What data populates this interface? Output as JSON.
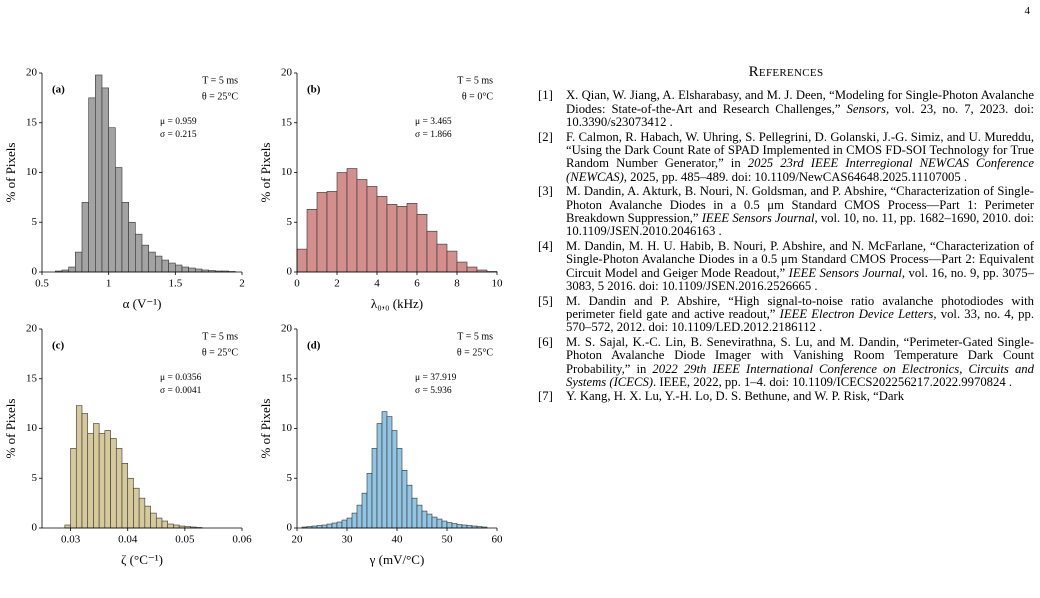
{
  "page_number": "4",
  "chart_data": [
    {
      "type": "histogram",
      "xlabel": "α (V⁻¹)",
      "ylabel": "% of Pixels",
      "color": "#a3a3a3",
      "annotations": [
        "(a)",
        "T = 5 ms",
        "θ = 25°C",
        "μ = 0.959",
        "σ = 0.215"
      ],
      "bins": [
        0.6,
        0.65,
        0.7,
        0.75,
        0.8,
        0.85,
        0.9,
        0.95,
        1.0,
        1.05,
        1.1,
        1.15,
        1.2,
        1.25,
        1.3,
        1.35,
        1.4,
        1.45,
        1.5,
        1.55,
        1.6,
        1.65,
        1.7,
        1.75,
        1.8,
        1.85,
        1.9,
        1.95
      ],
      "values": [
        0.1,
        0.2,
        0.5,
        2.0,
        7.0,
        17.5,
        19.8,
        18.5,
        14.5,
        10.5,
        7.0,
        5.0,
        3.8,
        2.7,
        2.0,
        1.6,
        1.2,
        0.9,
        0.7,
        0.5,
        0.4,
        0.3,
        0.2,
        0.15,
        0.1,
        0.1,
        0.05
      ],
      "xlim": [
        0.5,
        2
      ],
      "xticks": [
        0.5,
        1,
        1.5,
        2
      ],
      "ylim": [
        0,
        20
      ],
      "yticks": [
        0,
        5,
        10,
        15,
        20
      ]
    },
    {
      "type": "histogram",
      "xlabel": "λ₀,₀ (kHz)",
      "ylabel": "% of Pixels",
      "color": "#d38e8e",
      "annotations": [
        "(b)",
        "T = 5 ms",
        "θ = 0°C",
        "μ = 3.465",
        "σ = 1.866"
      ],
      "bins": [
        0,
        0.5,
        1,
        1.5,
        2,
        2.5,
        3,
        3.5,
        4,
        4.5,
        5,
        5.5,
        6,
        6.5,
        7,
        7.5,
        8,
        8.5,
        9,
        9.5,
        10
      ],
      "values": [
        2.3,
        6.3,
        8.0,
        8.1,
        10.0,
        10.4,
        9.3,
        8.6,
        7.6,
        6.8,
        6.6,
        6.9,
        5.8,
        4.1,
        2.8,
        2.1,
        1.0,
        0.5,
        0.2,
        0.05
      ],
      "xlim": [
        0,
        10
      ],
      "xticks": [
        0,
        2,
        4,
        6,
        8,
        10
      ],
      "ylim": [
        0,
        20
      ],
      "yticks": [
        0,
        5,
        10,
        15,
        20
      ]
    },
    {
      "type": "histogram",
      "xlabel": "ζ (°C⁻¹)",
      "ylabel": "% of Pixels",
      "color": "#d6ca9c",
      "annotations": [
        "(c)",
        "T = 5 ms",
        "θ = 25°C",
        "μ = 0.0356",
        "σ = 0.0041"
      ],
      "bins": [
        0.029,
        0.03,
        0.031,
        0.032,
        0.033,
        0.034,
        0.035,
        0.036,
        0.037,
        0.038,
        0.039,
        0.04,
        0.041,
        0.042,
        0.043,
        0.044,
        0.045,
        0.046,
        0.047,
        0.048,
        0.049,
        0.05,
        0.051,
        0.052,
        0.053
      ],
      "values": [
        0.3,
        8.0,
        12.3,
        11.5,
        9.5,
        10.5,
        9.5,
        9.8,
        9.0,
        8.0,
        6.5,
        5.0,
        4.0,
        3.0,
        2.2,
        1.5,
        1.0,
        0.7,
        0.4,
        0.3,
        0.2,
        0.15,
        0.1,
        0.05
      ],
      "xlim": [
        0.025,
        0.06
      ],
      "xticks": [
        0.03,
        0.04,
        0.05,
        0.06
      ],
      "ylim": [
        0,
        20
      ],
      "yticks": [
        0,
        5,
        10,
        15,
        20
      ]
    },
    {
      "type": "histogram",
      "xlabel": "γ (mV/°C)",
      "ylabel": "% of Pixels",
      "color": "#92c5e4",
      "annotations": [
        "(d)",
        "T = 5 ms",
        "θ = 25°C",
        "μ = 37.919",
        "σ = 5.936"
      ],
      "bins": [
        21,
        22,
        23,
        24,
        25,
        26,
        27,
        28,
        29,
        30,
        31,
        32,
        33,
        34,
        35,
        36,
        37,
        38,
        39,
        40,
        41,
        42,
        43,
        44,
        45,
        46,
        47,
        48,
        49,
        50,
        51,
        52,
        53,
        54,
        55,
        56,
        57,
        58
      ],
      "values": [
        0.1,
        0.15,
        0.2,
        0.25,
        0.3,
        0.4,
        0.5,
        0.6,
        0.8,
        1.0,
        1.5,
        2.3,
        3.5,
        5.5,
        8.0,
        10.5,
        11.7,
        11.2,
        9.8,
        8.0,
        5.8,
        4.3,
        3.0,
        2.3,
        1.7,
        1.4,
        1.1,
        0.9,
        0.7,
        0.55,
        0.45,
        0.35,
        0.3,
        0.25,
        0.2,
        0.15,
        0.1
      ],
      "xlim": [
        20,
        60
      ],
      "xticks": [
        20,
        30,
        40,
        50,
        60
      ],
      "ylim": [
        0,
        20
      ],
      "yticks": [
        0,
        5,
        10,
        15,
        20
      ]
    }
  ],
  "references": {
    "title": "References",
    "items": [
      {
        "label": "[1]",
        "parts": [
          "X. Qian, W. Jiang, A. Elsharabasy, and M. J. Deen, “Modeling for Single-Photon Avalanche Diodes: State-of-the-Art and Research Challenges,” ",
          "Sensors",
          ", vol. 23, no. 7, 2023. doi: 10.3390/s23073412 ."
        ]
      },
      {
        "label": "[2]",
        "parts": [
          "F. Calmon, R. Habach, W. Uhring, S. Pellegrini, D. Golanski, J.-G. Simiz, and U. Mureddu, “Using the Dark Count Rate of SPAD Implemented in CMOS FD-SOI Technology for True Random Number Generator,” in ",
          "2025 23rd IEEE Interregional NEWCAS Conference (NEWCAS)",
          ", 2025, pp. 485–489. doi: 10.1109/NewCAS64648.2025.11107005 ."
        ]
      },
      {
        "label": "[3]",
        "parts": [
          "M. Dandin, A. Akturk, B. Nouri, N. Goldsman, and P. Abshire, “Characterization of Single-Photon Avalanche Diodes in a 0.5 μm Standard CMOS Process—Part 1: Perimeter Breakdown Suppression,” ",
          "IEEE Sensors Journal",
          ", vol. 10, no. 11, pp. 1682–1690, 2010. doi: 10.1109/JSEN.2010.2046163 ."
        ]
      },
      {
        "label": "[4]",
        "parts": [
          "M. Dandin, M. H. U. Habib, B. Nouri, P. Abshire, and N. McFarlane, “Characterization of Single-Photon Avalanche Diodes in a 0.5 μm Standard CMOS Process—Part 2: Equivalent Circuit Model and Geiger Mode Readout,” ",
          "IEEE Sensors Journal",
          ", vol. 16, no. 9, pp. 3075–3083, 5 2016. doi: 10.1109/JSEN.2016.2526665 ."
        ]
      },
      {
        "label": "[5]",
        "parts": [
          "M. Dandin and P. Abshire, “High signal-to-noise ratio avalanche photodiodes with perimeter field gate and active readout,” ",
          "IEEE Electron Device Letters",
          ", vol. 33, no. 4, pp. 570–572, 2012. doi: 10.1109/LED.2012.2186112 ."
        ]
      },
      {
        "label": "[6]",
        "parts": [
          "M. S. Sajal, K.-C. Lin, B. Senevirathna, S. Lu, and M. Dandin, “Perimeter-Gated Single-Photon Avalanche Diode Imager with Vanishing Room Temperature Dark Count Probability,” in ",
          "2022 29th IEEE International Conference on Electronics, Circuits and Systems (ICECS)",
          ". IEEE, 2022, pp. 1–4. doi: 10.1109/ICECS202256217.2022.9970824 ."
        ]
      },
      {
        "label": "[7]",
        "parts": [
          "Y. Kang, H. X. Lu, Y.-H. Lo, D. S. Bethune, and W. P. Risk, “Dark"
        ]
      }
    ]
  }
}
